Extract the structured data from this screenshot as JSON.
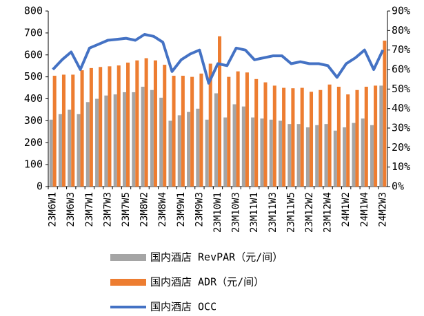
{
  "chart_data": {
    "type": "bar-line",
    "categories": [
      "23M6W1",
      null,
      "23M6W3",
      null,
      "23M7W1",
      null,
      "23M7W3",
      null,
      "23M7W5",
      null,
      "23M8W2",
      null,
      "23M8W4",
      null,
      "23M9W1",
      null,
      "23M9W3",
      null,
      "23M10W1",
      null,
      "23M10W3",
      null,
      "23M11W1",
      null,
      "23M11W3",
      null,
      "23M11W5",
      null,
      "23M12W2",
      null,
      "23M12W4",
      null,
      "24M1W2",
      null,
      "24M1W4",
      null,
      "24M2W3"
    ],
    "series": [
      {
        "name": "国内酒店 RevPAR（元/间）",
        "color": "#a5a5a5",
        "kind": "bar",
        "values": [
          305,
          330,
          350,
          330,
          385,
          400,
          415,
          420,
          430,
          430,
          455,
          440,
          405,
          300,
          325,
          340,
          355,
          305,
          425,
          315,
          375,
          365,
          315,
          310,
          305,
          300,
          285,
          285,
          270,
          280,
          285,
          255,
          270,
          290,
          310,
          280,
          460
        ]
      },
      {
        "name": "国内酒店 ADR（元/间）",
        "color": "#ed7d31",
        "kind": "bar",
        "values": [
          505,
          510,
          510,
          530,
          540,
          545,
          548,
          552,
          565,
          575,
          585,
          575,
          555,
          505,
          505,
          500,
          515,
          560,
          685,
          500,
          525,
          520,
          490,
          475,
          460,
          450,
          448,
          450,
          432,
          440,
          465,
          455,
          420,
          440,
          455,
          460,
          665
        ]
      },
      {
        "name": "国内酒店 OCC",
        "color": "#4472c4",
        "kind": "line",
        "axis": "y2",
        "values": [
          60,
          65,
          69,
          60,
          71,
          73,
          75,
          75.5,
          76,
          75,
          78,
          77,
          74,
          59,
          65,
          68,
          70,
          53,
          63,
          62,
          71,
          70,
          65,
          66,
          67,
          67,
          63,
          64,
          63,
          63,
          62,
          56,
          63,
          66,
          70,
          60,
          70
        ]
      }
    ],
    "ylim": [
      0,
      800
    ],
    "yticks": [
      0,
      100,
      200,
      300,
      400,
      500,
      600,
      700,
      800
    ],
    "y2lim": [
      0,
      90
    ],
    "y2ticks": [
      {
        "value": 0,
        "label": "0%"
      },
      {
        "value": 10,
        "label": "10%"
      },
      {
        "value": 20,
        "label": "20%"
      },
      {
        "value": 30,
        "label": "30%"
      },
      {
        "value": 40,
        "label": "40%"
      },
      {
        "value": 50,
        "label": "50%"
      },
      {
        "value": 60,
        "label": "60%"
      },
      {
        "value": 70,
        "label": "70%"
      },
      {
        "value": 80,
        "label": "80%"
      },
      {
        "value": 90,
        "label": "90%"
      }
    ]
  }
}
